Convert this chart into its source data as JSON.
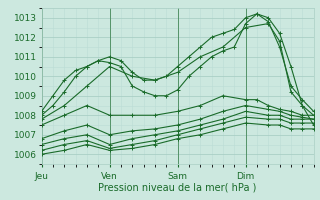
{
  "xlabel": "Pression niveau de la mer( hPa )",
  "xlim": [
    0,
    96
  ],
  "ylim": [
    1005.5,
    1013.5
  ],
  "yticks": [
    1006,
    1007,
    1008,
    1009,
    1010,
    1011,
    1012,
    1013
  ],
  "xtick_positions": [
    0,
    24,
    48,
    72
  ],
  "xtick_labels": [
    "Jeu",
    "Ven",
    "Sam",
    "Dim"
  ],
  "bg_color": "#cce8df",
  "grid_major_color": "#aacfc5",
  "grid_minor_color": "#bbddd5",
  "line_color": "#1a6b2a",
  "series": [
    [
      0,
      1008.2,
      4,
      1009.0,
      8,
      1009.8,
      12,
      1010.3,
      16,
      1010.5,
      20,
      1010.8,
      24,
      1010.7,
      28,
      1010.5,
      32,
      1009.5,
      36,
      1009.2,
      40,
      1009.0,
      44,
      1009.0,
      48,
      1009.3,
      52,
      1010.0,
      56,
      1010.5,
      60,
      1011.0,
      64,
      1011.3,
      68,
      1011.5,
      72,
      1012.7,
      76,
      1013.2,
      80,
      1013.0,
      84,
      1012.2,
      88,
      1010.5,
      92,
      1008.5,
      96,
      1007.5
    ],
    [
      0,
      1008.0,
      4,
      1008.5,
      8,
      1009.2,
      12,
      1010.0,
      16,
      1010.5,
      20,
      1010.8,
      24,
      1011.0,
      28,
      1010.8,
      32,
      1010.2,
      36,
      1009.8,
      40,
      1009.8,
      44,
      1010.0,
      48,
      1010.5,
      52,
      1011.0,
      56,
      1011.5,
      60,
      1012.0,
      64,
      1012.2,
      68,
      1012.4,
      72,
      1013.0,
      76,
      1013.2,
      80,
      1012.8,
      84,
      1011.5,
      88,
      1009.5,
      92,
      1008.8,
      96,
      1008.2
    ],
    [
      0,
      1007.8,
      8,
      1008.5,
      16,
      1009.5,
      24,
      1010.5,
      32,
      1010.0,
      40,
      1009.8,
      48,
      1010.2,
      56,
      1011.0,
      64,
      1011.5,
      72,
      1012.5,
      80,
      1012.7,
      84,
      1011.8,
      88,
      1009.2,
      92,
      1008.5,
      96,
      1008.0
    ],
    [
      0,
      1007.5,
      8,
      1008.0,
      16,
      1008.5,
      24,
      1008.0,
      32,
      1008.0,
      40,
      1008.0,
      48,
      1008.2,
      56,
      1008.5,
      64,
      1009.0,
      72,
      1008.8,
      76,
      1008.8,
      80,
      1008.5,
      84,
      1008.3,
      88,
      1008.2,
      92,
      1008.0,
      96,
      1008.0
    ],
    [
      0,
      1006.8,
      8,
      1007.2,
      16,
      1007.5,
      24,
      1007.0,
      32,
      1007.2,
      40,
      1007.3,
      48,
      1007.5,
      56,
      1007.8,
      64,
      1008.2,
      72,
      1008.5,
      80,
      1008.3,
      84,
      1008.2,
      88,
      1008.0,
      92,
      1007.9,
      96,
      1007.8
    ],
    [
      0,
      1006.5,
      8,
      1006.8,
      16,
      1007.0,
      24,
      1006.5,
      32,
      1006.8,
      40,
      1007.0,
      48,
      1007.2,
      56,
      1007.5,
      64,
      1007.8,
      72,
      1008.2,
      80,
      1008.0,
      84,
      1008.0,
      88,
      1007.8,
      92,
      1007.8,
      96,
      1007.8
    ],
    [
      0,
      1006.2,
      8,
      1006.5,
      16,
      1006.7,
      24,
      1006.3,
      32,
      1006.5,
      40,
      1006.7,
      48,
      1007.0,
      56,
      1007.3,
      64,
      1007.6,
      72,
      1007.9,
      80,
      1007.8,
      84,
      1007.8,
      88,
      1007.6,
      92,
      1007.6,
      96,
      1007.6
    ],
    [
      0,
      1006.0,
      8,
      1006.2,
      16,
      1006.5,
      24,
      1006.2,
      32,
      1006.3,
      40,
      1006.5,
      48,
      1006.8,
      56,
      1007.0,
      64,
      1007.3,
      72,
      1007.6,
      80,
      1007.5,
      84,
      1007.5,
      88,
      1007.3,
      92,
      1007.3,
      96,
      1007.3
    ]
  ]
}
